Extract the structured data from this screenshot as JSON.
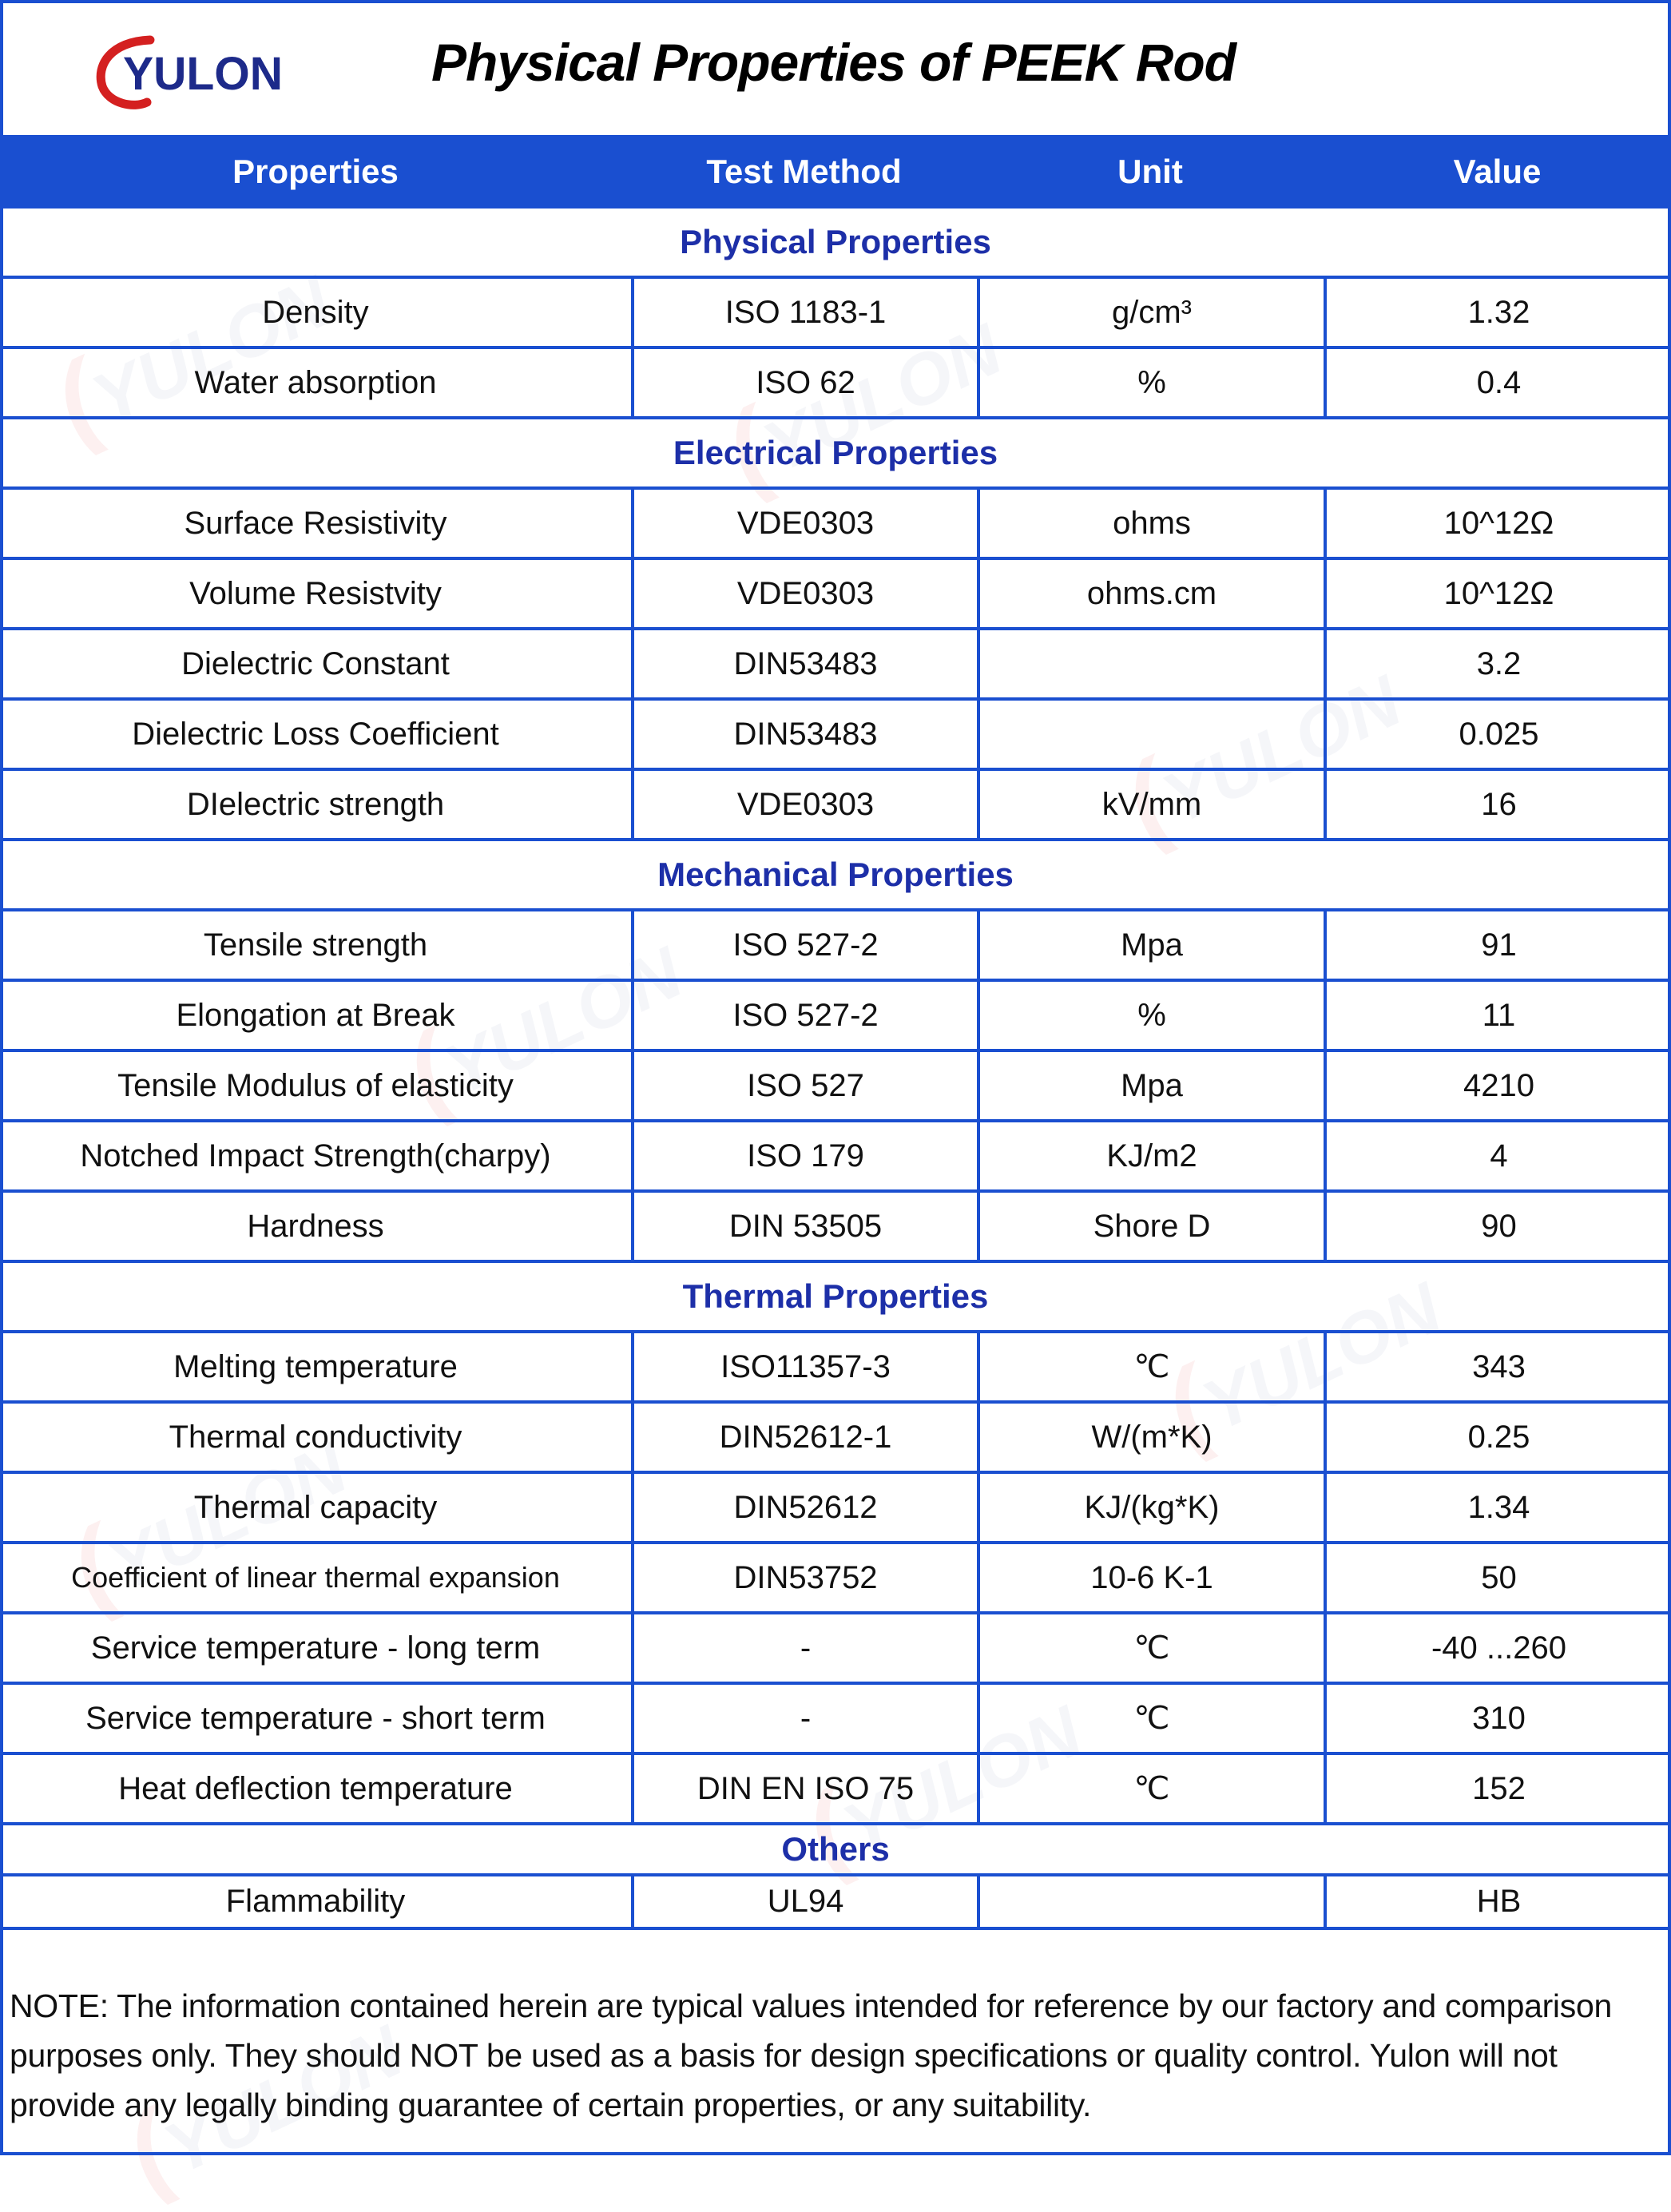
{
  "header": {
    "logo_text": "YULON",
    "title": "Physical Properties of PEEK Rod",
    "brand_colors": {
      "red": "#d42020",
      "navy": "#1d2a8a"
    }
  },
  "columns": [
    "Properties",
    "Test Method",
    "Unit",
    "Value"
  ],
  "colors": {
    "header_bg": "#1a4fd0",
    "section_text": "#1d2fa8",
    "border": "#1a4fd0"
  },
  "sections": [
    {
      "title": "Physical Properties",
      "rows": [
        [
          "Density",
          "ISO 1183-1",
          "g/cm³",
          "1.32"
        ],
        [
          "Water absorption",
          "ISO 62",
          "%",
          "0.4"
        ]
      ]
    },
    {
      "title": "Electrical Properties",
      "rows": [
        [
          "Surface Resistivity",
          "VDE0303",
          "ohms",
          "10^12Ω"
        ],
        [
          "Volume Resistvity",
          "VDE0303",
          "ohms.cm",
          "10^12Ω"
        ],
        [
          "Dielectric Constant",
          "DIN53483",
          "",
          "3.2"
        ],
        [
          "Dielectric Loss Coefficient",
          "DIN53483",
          "",
          "0.025"
        ],
        [
          "DIelectric strength",
          "VDE0303",
          "kV/mm",
          "16"
        ]
      ]
    },
    {
      "title": "Mechanical Properties",
      "rows": [
        [
          "Tensile strength",
          "ISO 527-2",
          "Mpa",
          "91"
        ],
        [
          "Elongation at Break",
          "ISO 527-2",
          "%",
          "11"
        ],
        [
          "Tensile Modulus of elasticity",
          "ISO 527",
          "Mpa",
          "4210"
        ],
        [
          "Notched Impact Strength(charpy)",
          "ISO 179",
          "KJ/m2",
          "4"
        ],
        [
          "Hardness",
          "DIN 53505",
          "Shore D",
          "90"
        ]
      ]
    },
    {
      "title": "Thermal Properties",
      "rows": [
        [
          "Melting temperature",
          "ISO11357-3",
          "℃",
          "343"
        ],
        [
          "Thermal conductivity",
          "DIN52612-1",
          "W/(m*K)",
          "0.25"
        ],
        [
          "Thermal capacity",
          "DIN52612",
          "KJ/(kg*K)",
          "1.34"
        ],
        [
          "Coefficient of linear thermal expansion",
          "DIN53752",
          "10-6 K-1",
          "50"
        ],
        [
          "Service temperature - long term",
          "-",
          "℃",
          "-40 ...260"
        ],
        [
          "Service temperature - short term",
          "-",
          "℃",
          "310"
        ],
        [
          "Heat deflection temperature",
          "DIN EN ISO 75",
          "℃",
          "152"
        ]
      ]
    },
    {
      "title": "Others",
      "rows": [
        [
          "Flammability",
          "UL94",
          "",
          "HB"
        ]
      ]
    }
  ],
  "note": "NOTE: The information contained herein are typical values intended for reference by our factory and comparison purposes only. They should NOT be used as a basis for design specifications or quality control. Yulon will not provide any legally binding guarantee of certain properties, or any suitability."
}
